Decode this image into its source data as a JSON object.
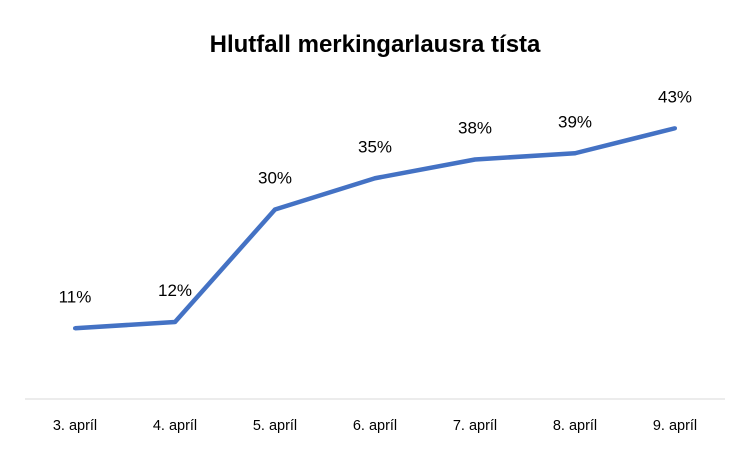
{
  "chart_data": {
    "type": "line",
    "title": "Hlutfall merkingarlausra tísta",
    "xlabel": "",
    "ylabel": "",
    "categories": [
      "3. apríl",
      "4. apríl",
      "5. apríl",
      "6. apríl",
      "7. apríl",
      "8. apríl",
      "9. apríl"
    ],
    "series": [
      {
        "values": [
          11,
          12,
          30,
          35,
          38,
          39,
          43
        ],
        "labels": [
          "11%",
          "12%",
          "30%",
          "35%",
          "38%",
          "39%",
          "43%"
        ]
      }
    ],
    "ylim": [
      0,
      50
    ],
    "grid": false,
    "legend": "none",
    "line_color": "#4472C4",
    "axis_color": "#D9D9D9"
  }
}
